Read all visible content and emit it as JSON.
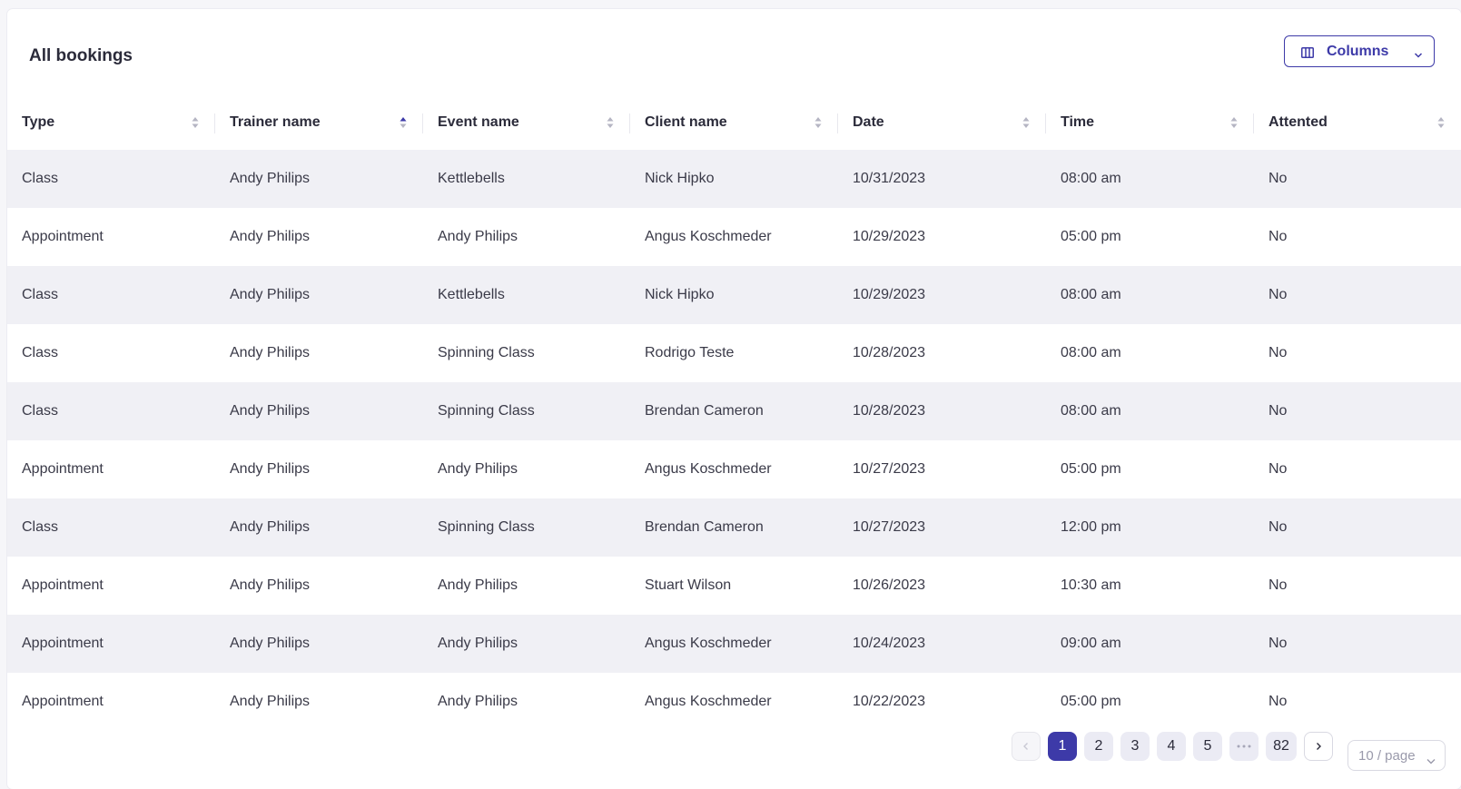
{
  "header": {
    "title": "All bookings",
    "columns_button_label": "Columns"
  },
  "table": {
    "columns": [
      {
        "label": "Type",
        "sort": "none"
      },
      {
        "label": "Trainer name",
        "sort": "ascending"
      },
      {
        "label": "Event name",
        "sort": "none"
      },
      {
        "label": "Client name",
        "sort": "none"
      },
      {
        "label": "Date",
        "sort": "none"
      },
      {
        "label": "Time",
        "sort": "none"
      },
      {
        "label": "Attented",
        "sort": "none"
      }
    ],
    "rows": [
      [
        "Class",
        "Andy Philips",
        "Kettlebells",
        "Nick Hipko",
        "10/31/2023",
        "08:00 am",
        "No"
      ],
      [
        "Appointment",
        "Andy Philips",
        "Andy Philips",
        "Angus Koschmeder",
        "10/29/2023",
        "05:00 pm",
        "No"
      ],
      [
        "Class",
        "Andy Philips",
        "Kettlebells",
        "Nick Hipko",
        "10/29/2023",
        "08:00 am",
        "No"
      ],
      [
        "Class",
        "Andy Philips",
        "Spinning Class",
        "Rodrigo Teste",
        "10/28/2023",
        "08:00 am",
        "No"
      ],
      [
        "Class",
        "Andy Philips",
        "Spinning Class",
        "Brendan Cameron",
        "10/28/2023",
        "08:00 am",
        "No"
      ],
      [
        "Appointment",
        "Andy Philips",
        "Andy Philips",
        "Angus Koschmeder",
        "10/27/2023",
        "05:00 pm",
        "No"
      ],
      [
        "Class",
        "Andy Philips",
        "Spinning Class",
        "Brendan Cameron",
        "10/27/2023",
        "12:00 pm",
        "No"
      ],
      [
        "Appointment",
        "Andy Philips",
        "Andy Philips",
        "Stuart Wilson",
        "10/26/2023",
        "10:30 am",
        "No"
      ],
      [
        "Appointment",
        "Andy Philips",
        "Andy Philips",
        "Angus Koschmeder",
        "10/24/2023",
        "09:00 am",
        "No"
      ],
      [
        "Appointment",
        "Andy Philips",
        "Andy Philips",
        "Angus Koschmeder",
        "10/22/2023",
        "05:00 pm",
        "No"
      ]
    ]
  },
  "pagination": {
    "pages": [
      "1",
      "2",
      "3",
      "4",
      "5"
    ],
    "current_page": "1",
    "last_page": "82",
    "page_size_label": "10 / page"
  },
  "colors": {
    "accent": "#3d3aa8",
    "row_stripe": "#f0f0f5",
    "sort_inactive": "#b5b5c3"
  },
  "icons": {
    "columns": "columns-icon",
    "dropdown": "chevron-down-icon",
    "sort": "sort-icon",
    "prev": "chevron-left-icon",
    "next": "chevron-right-icon",
    "ellipsis": "ellipsis-icon"
  }
}
